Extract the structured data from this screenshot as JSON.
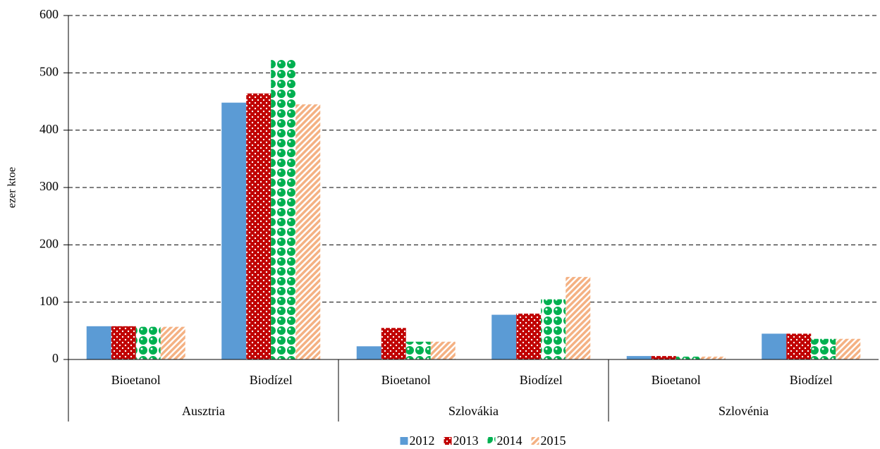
{
  "chart_data": {
    "type": "bar",
    "ylabel": "ezer ktoe",
    "groups": [
      "Ausztria",
      "Szlovákia",
      "Szlovénia"
    ],
    "categories": [
      "Bioetanol",
      "Biodízel",
      "Bioetanol",
      "Biodízel",
      "Bioetanol",
      "Biodízel"
    ],
    "series": [
      {
        "name": "2012",
        "color": "#5b9bd5",
        "pattern": "solid",
        "values": [
          58,
          448,
          23,
          78,
          6,
          45
        ]
      },
      {
        "name": "2013",
        "color": "#c00000",
        "pattern": "dots",
        "values": [
          58,
          464,
          55,
          80,
          6,
          45
        ]
      },
      {
        "name": "2014",
        "color": "#00b050",
        "pattern": "circles",
        "values": [
          57,
          524,
          31,
          105,
          5,
          36
        ]
      },
      {
        "name": "2015",
        "color": "#f4b183",
        "pattern": "stripes",
        "values": [
          57,
          445,
          31,
          144,
          5,
          36
        ]
      }
    ],
    "ylim": [
      0,
      600
    ],
    "yticks": [
      0,
      100,
      200,
      300,
      400,
      500,
      600
    ],
    "grid": true,
    "legend": "bottom"
  }
}
